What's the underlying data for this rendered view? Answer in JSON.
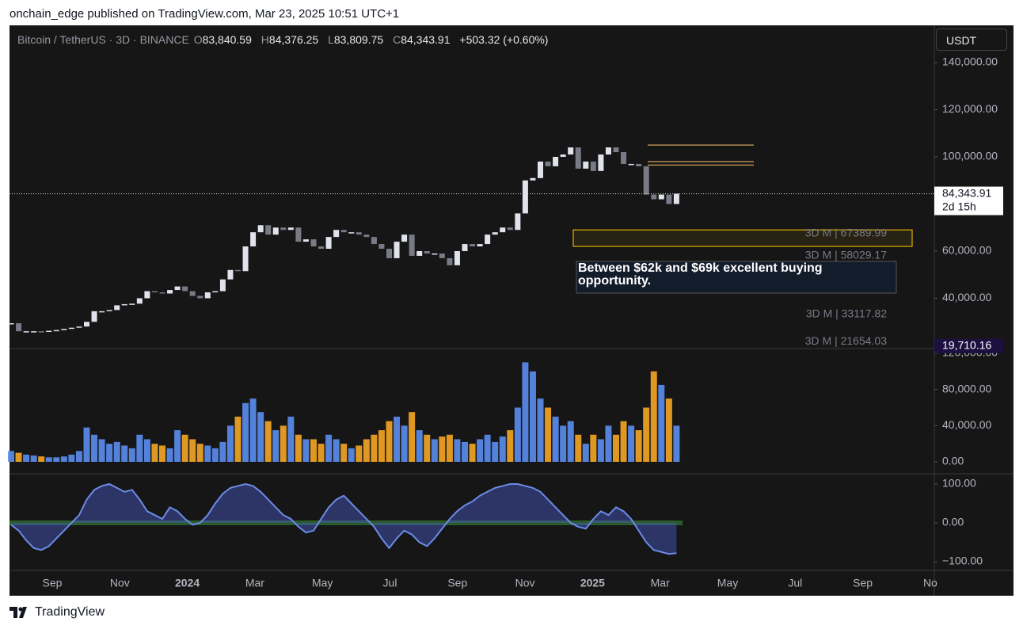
{
  "header": {
    "publisher": "onchain_edge published on TradingView.com, Mar 23, 2025 10:51 UTC+1",
    "brand": "TradingView"
  },
  "chart_data": {
    "type": "candlestick",
    "title": "Bitcoin / TetherUS · 3D · BINANCE",
    "ohlc": [
      {
        "key": "O",
        "value": "83,840.59"
      },
      {
        "key": "H",
        "value": "84,376.25"
      },
      {
        "key": "L",
        "value": "83,809.75"
      },
      {
        "key": "C",
        "value": "84,343.91"
      }
    ],
    "change": "+503.32 (+0.60%)",
    "currency": "USDT",
    "close": [
      29400,
      26000,
      26000,
      26000,
      25800,
      26200,
      26500,
      27000,
      27500,
      28000,
      30000,
      34500,
      34500,
      35000,
      37000,
      37500,
      37700,
      40000,
      43000,
      42500,
      42000,
      43500,
      45000,
      43000,
      41000,
      40000,
      42500,
      43000,
      48000,
      52000,
      51500,
      62000,
      68000,
      71000,
      67000,
      70000,
      69000,
      70000,
      64000,
      65000,
      62000,
      61000,
      66000,
      69000,
      68000,
      68000,
      67000,
      66000,
      63000,
      61000,
      57000,
      64000,
      67000,
      58000,
      60000,
      59000,
      59000,
      57000,
      54000,
      60000,
      63000,
      62000,
      63000,
      67000,
      68000,
      70000,
      69000,
      76000,
      90000,
      91000,
      98000,
      96000,
      100000,
      101000,
      104000,
      95000,
      98000,
      94000,
      101000,
      104000,
      102000,
      97000,
      97000,
      96000,
      84000,
      82000,
      84000,
      80000,
      84343.91
    ],
    "ylim": [
      18650,
      155800
    ],
    "yticks": [
      {
        "value": 40000,
        "label": "40,000.00"
      },
      {
        "value": 60000,
        "label": "60,000.00"
      },
      {
        "value": 100000,
        "label": "100,000.00"
      },
      {
        "value": 120000,
        "label": "120,000.00"
      },
      {
        "value": 140000,
        "label": "140,000.00"
      }
    ],
    "last_price": {
      "value": 84343.91,
      "label": "84,343.91"
    },
    "countdown": "2d 15h",
    "low_marker": {
      "value": 19710.16,
      "label": "19,710.16"
    },
    "levels": [
      {
        "value": 67389.99,
        "label": "3D M | 67389.99"
      },
      {
        "value": 58029.17,
        "label": "3D M | 58029.17"
      },
      {
        "value": 33117.82,
        "label": "3D M | 33117.82"
      },
      {
        "value": 21654.03,
        "label": "3D M | 21654.03"
      }
    ],
    "zone": {
      "low": 62000,
      "high": 69000,
      "text": "Between $62k and $69k excellent buying opportunity."
    },
    "resistance": [
      105000,
      98000,
      96500
    ],
    "time_labels": [
      "Sep",
      "Nov",
      "2024",
      "Mar",
      "May",
      "Jul",
      "Sep",
      "Nov",
      "2025",
      "Mar",
      "May",
      "Jul",
      "Sep",
      "No"
    ],
    "up_color": "#e0e3eb",
    "down_color": "#787b86"
  },
  "volume": {
    "values": [
      12000,
      10000,
      8000,
      7000,
      6000,
      5000,
      5000,
      6000,
      8000,
      12000,
      38000,
      30000,
      25000,
      20000,
      22000,
      18000,
      15000,
      30000,
      25000,
      20000,
      18000,
      15000,
      35000,
      30000,
      25000,
      20000,
      18000,
      15000,
      22000,
      40000,
      50000,
      65000,
      70000,
      55000,
      45000,
      35000,
      40000,
      50000,
      30000,
      25000,
      25000,
      20000,
      30000,
      25000,
      20000,
      15000,
      18000,
      25000,
      30000,
      35000,
      45000,
      50000,
      40000,
      55000,
      35000,
      30000,
      25000,
      28000,
      30000,
      25000,
      22000,
      20000,
      25000,
      30000,
      22000,
      28000,
      35000,
      60000,
      110000,
      100000,
      70000,
      60000,
      50000,
      40000,
      45000,
      30000,
      20000,
      30000,
      25000,
      40000,
      30000,
      45000,
      40000,
      35000,
      60000,
      100000,
      85000,
      70000,
      40000
    ],
    "ylim": [
      -13140,
      125250
    ],
    "yticks": [
      {
        "value": 0,
        "label": "0.00"
      },
      {
        "value": 40000,
        "label": "40,000.00"
      },
      {
        "value": 80000,
        "label": "80,000.00"
      },
      {
        "value": 120000,
        "label": "120,000.00"
      }
    ],
    "up_color": "#5b8def",
    "down_color": "#f5a623"
  },
  "oscillator": {
    "values": [
      -5,
      -20,
      -45,
      -65,
      -70,
      -60,
      -40,
      -20,
      0,
      20,
      60,
      85,
      95,
      100,
      90,
      80,
      85,
      60,
      30,
      20,
      10,
      40,
      30,
      10,
      -5,
      0,
      20,
      50,
      75,
      90,
      95,
      100,
      95,
      80,
      60,
      40,
      20,
      10,
      -10,
      -25,
      -20,
      10,
      40,
      60,
      70,
      50,
      30,
      10,
      -10,
      -40,
      -65,
      -40,
      -20,
      -30,
      -50,
      -60,
      -40,
      -15,
      10,
      30,
      45,
      55,
      70,
      80,
      90,
      95,
      100,
      100,
      95,
      90,
      80,
      60,
      40,
      20,
      0,
      -10,
      -15,
      10,
      30,
      20,
      40,
      30,
      10,
      -20,
      -50,
      -70,
      -75,
      -80,
      -78
    ],
    "ylim": [
      -122.4,
      126.5
    ],
    "yticks": [
      {
        "value": 100,
        "label": "100.00"
      },
      {
        "value": 0,
        "label": "0.00"
      },
      {
        "value": -100,
        "label": "−100.00"
      }
    ],
    "color": "#6b8be6"
  }
}
